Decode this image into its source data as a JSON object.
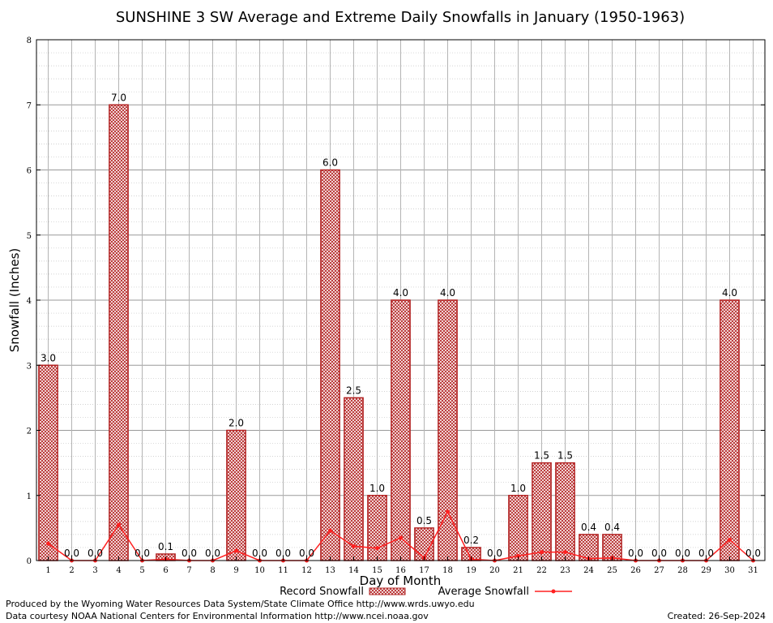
{
  "chart_data": {
    "type": "bar",
    "title": "SUNSHINE 3 SW Average and Extreme Daily Snowfalls in January (1950-1963)",
    "xlabel": "Day of Month",
    "ylabel": "Snowfall (Inches)",
    "ylim": [
      0,
      8
    ],
    "yticks": [
      "0",
      "1",
      "2",
      "3",
      "4",
      "5",
      "6",
      "7",
      "8"
    ],
    "grid": true,
    "legend_position": "bottom",
    "categories": [
      "1",
      "2",
      "3",
      "4",
      "5",
      "6",
      "7",
      "8",
      "9",
      "10",
      "11",
      "12",
      "13",
      "14",
      "15",
      "16",
      "17",
      "18",
      "19",
      "20",
      "21",
      "22",
      "23",
      "24",
      "25",
      "26",
      "27",
      "28",
      "29",
      "30",
      "31"
    ],
    "series": [
      {
        "name": "Record Snowfall",
        "kind": "bar",
        "color": "#b22222",
        "values": [
          3.0,
          0.0,
          0.0,
          7.0,
          0.0,
          0.1,
          0.0,
          0.0,
          2.0,
          0.0,
          0.0,
          0.0,
          6.0,
          2.5,
          1.0,
          4.0,
          0.5,
          4.0,
          0.2,
          0.0,
          1.0,
          1.5,
          1.5,
          0.4,
          0.4,
          0.0,
          0.0,
          0.0,
          0.0,
          4.0,
          0.0
        ],
        "labels": [
          "3.0",
          "0.0",
          "0.0",
          "7.0",
          "0.0",
          "0.1",
          "0.0",
          "0.0",
          "2.0",
          "0.0",
          "0.0",
          "0.0",
          "6.0",
          "2.5",
          "1.0",
          "4.0",
          "0.5",
          "4.0",
          "0.2",
          "0.0",
          "1.0",
          "1.5",
          "1.5",
          "0.4",
          "0.4",
          "0.0",
          "0.0",
          "0.0",
          "0.0",
          "4.0",
          "0.0"
        ]
      },
      {
        "name": "Average Snowfall",
        "kind": "line",
        "color": "#ff2020",
        "values": [
          0.26,
          0.0,
          0.0,
          0.55,
          0.0,
          0.02,
          0.0,
          0.0,
          0.15,
          0.0,
          0.0,
          0.0,
          0.46,
          0.22,
          0.19,
          0.35,
          0.04,
          0.75,
          0.02,
          0.0,
          0.07,
          0.13,
          0.13,
          0.03,
          0.04,
          0.0,
          0.0,
          0.0,
          0.0,
          0.32,
          0.0
        ]
      }
    ]
  },
  "footer": {
    "produced_by": "Produced by the Wyoming Water Resources Data System/State Climate Office http://www.wrds.uwyo.edu",
    "courtesy": "Data courtesy NOAA National Centers for Environmental Information http://www.ncei.noaa.gov",
    "created": "Created: 26-Sep-2024"
  }
}
